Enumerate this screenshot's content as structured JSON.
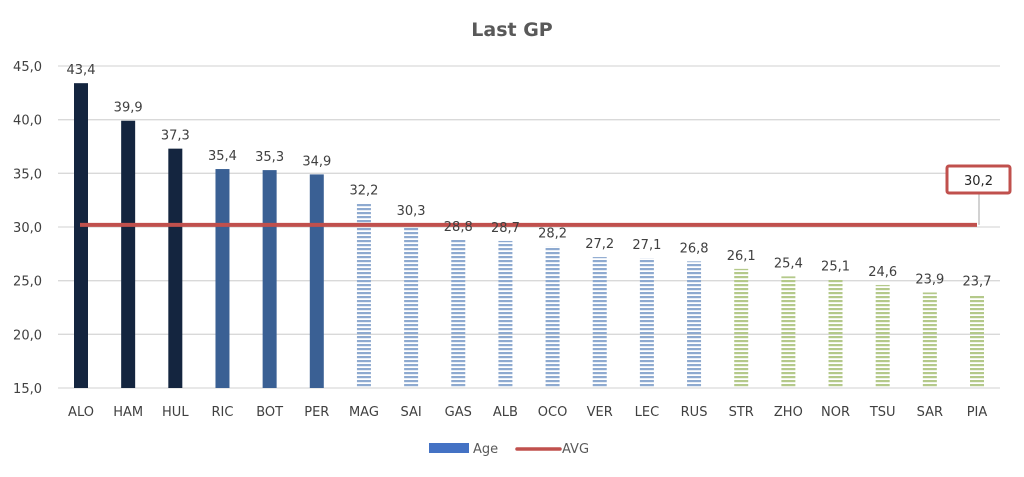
{
  "chart_data": {
    "type": "bar",
    "title": "Last GP",
    "xlabel": "",
    "ylabel": "",
    "ylim": [
      15,
      45
    ],
    "yticks": [
      "15,0",
      "20,0",
      "25,0",
      "30,0",
      "35,0",
      "40,0",
      "45,0"
    ],
    "ytick_values": [
      15,
      20,
      25,
      30,
      35,
      40,
      45
    ],
    "grid": true,
    "categories": [
      "ALO",
      "HAM",
      "HUL",
      "RIC",
      "BOT",
      "PER",
      "MAG",
      "SAI",
      "GAS",
      "ALB",
      "OCO",
      "VER",
      "LEC",
      "RUS",
      "STR",
      "ZHO",
      "NOR",
      "TSU",
      "SAR",
      "PIA"
    ],
    "series": [
      {
        "name": "Age",
        "kind": "bar",
        "values": [
          43.4,
          39.9,
          37.3,
          35.4,
          35.3,
          34.9,
          32.2,
          30.3,
          28.8,
          28.7,
          28.2,
          27.2,
          27.1,
          26.8,
          26.1,
          25.4,
          25.1,
          24.6,
          23.9,
          23.7
        ],
        "labels": [
          "43,4",
          "39,9",
          "37,3",
          "35,4",
          "35,3",
          "34,9",
          "32,2",
          "30,3",
          "28,8",
          "28,7",
          "28,2",
          "27,2",
          "27,1",
          "26,8",
          "26,1",
          "25,4",
          "25,1",
          "24,6",
          "23,9",
          "23,7"
        ],
        "groups": [
          "old",
          "old",
          "old",
          "mid",
          "mid",
          "mid",
          "young",
          "young",
          "young",
          "young",
          "young",
          "young",
          "young",
          "young",
          "youngest",
          "youngest",
          "youngest",
          "youngest",
          "youngest",
          "youngest"
        ],
        "color": "#4472c4"
      },
      {
        "name": "AVG",
        "kind": "line",
        "value": 30.2,
        "label": "30,2",
        "color": "#c0504d"
      }
    ],
    "group_styles": {
      "old": {
        "color": "#14253f",
        "pattern": "solid"
      },
      "mid": {
        "color": "#3a6094",
        "pattern": "solid"
      },
      "young": {
        "color": "#8eaad0",
        "pattern": "horizontal-stripes"
      },
      "youngest": {
        "color": "#b4c98a",
        "pattern": "horizontal-stripes"
      }
    },
    "legend": {
      "position": "bottom",
      "entries": [
        "Age",
        "AVG"
      ]
    }
  }
}
